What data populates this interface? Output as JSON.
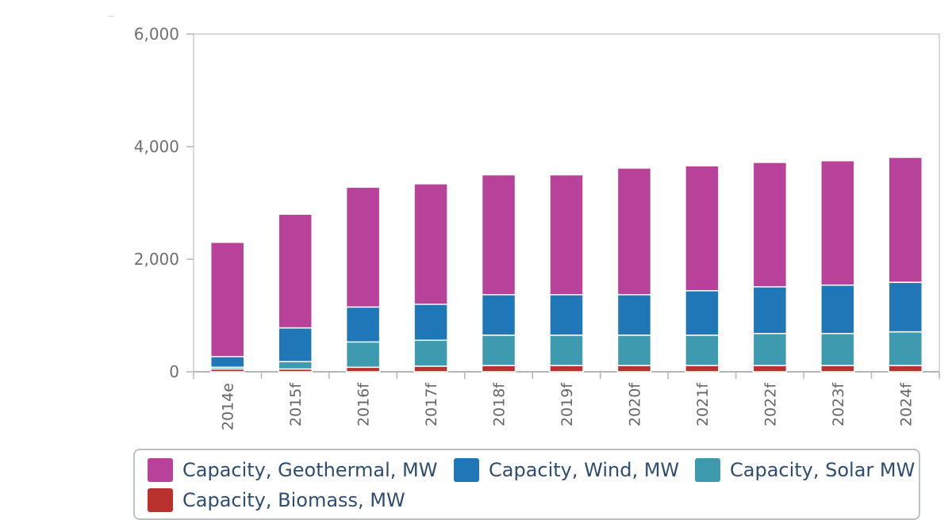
{
  "chart_data": {
    "type": "bar",
    "stacked": true,
    "title": "",
    "xlabel": "",
    "ylabel": "",
    "categories": [
      "2014e",
      "2015f",
      "2016f",
      "2017f",
      "2018f",
      "2019f",
      "2020f",
      "2021f",
      "2022f",
      "2023f",
      "2024f"
    ],
    "ylim": [
      0,
      6000
    ],
    "yticks": [
      0,
      2000,
      4000,
      6000
    ],
    "ytick_labels": [
      "0",
      "2,000",
      "4,000",
      "6,000"
    ],
    "grid": false,
    "legend_position": "bottom",
    "series": [
      {
        "name": "Capacity, Biomass, MW",
        "color": "#b8312c",
        "values": [
          50,
          50,
          80,
          100,
          110,
          110,
          110,
          110,
          110,
          110,
          110
        ]
      },
      {
        "name": "Capacity, Solar MW",
        "color": "#3d9aaf",
        "values": [
          30,
          130,
          450,
          460,
          540,
          540,
          540,
          540,
          570,
          570,
          600
        ]
      },
      {
        "name": "Capacity, Wind, MW",
        "color": "#1f77b8",
        "values": [
          190,
          600,
          620,
          640,
          720,
          720,
          720,
          790,
          830,
          860,
          880
        ]
      },
      {
        "name": "Capacity, Geothermal, MW",
        "color": "#b8419a",
        "values": [
          2030,
          2020,
          2130,
          2140,
          2130,
          2130,
          2250,
          2220,
          2210,
          2210,
          2220
        ]
      }
    ]
  },
  "legend": {
    "items": [
      {
        "label": "Capacity, Geothermal, MW",
        "color": "#b8419a"
      },
      {
        "label": "Capacity, Wind, MW",
        "color": "#1f77b8"
      },
      {
        "label": "Capacity, Solar MW",
        "color": "#3d9aaf"
      },
      {
        "label": "Capacity, Biomass, MW",
        "color": "#b8312c"
      }
    ]
  }
}
